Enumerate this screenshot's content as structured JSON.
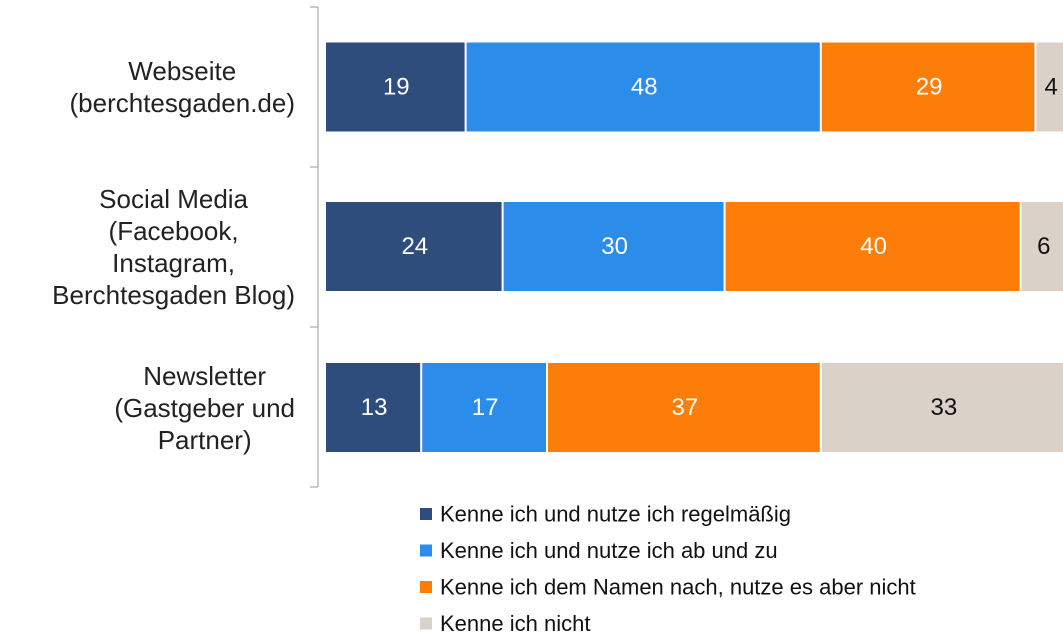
{
  "chart_data": {
    "type": "bar",
    "orientation": "horizontal",
    "stacked": true,
    "categories": [
      "Webseite\n(berchtesgaden.de)",
      "Social Media\n(Facebook,\nInstagram,\nBerchtesgaden Blog)",
      "Newsletter\n(Gastgeber und\nPartner)"
    ],
    "series": [
      {
        "name": "Kenne ich und nutze ich regelmäßig",
        "color": "#2e4d7d",
        "values": [
          19,
          24,
          13
        ]
      },
      {
        "name": "Kenne ich und nutze ich ab und zu",
        "color": "#2b8de9",
        "values": [
          48,
          30,
          17
        ]
      },
      {
        "name": "Kenne ich dem Namen nach, nutze es aber nicht",
        "color": "#fc7d08",
        "values": [
          29,
          40,
          37
        ]
      },
      {
        "name": "Kenne ich nicht",
        "color": "#dad1c8",
        "values": [
          4,
          6,
          33
        ]
      }
    ],
    "xlim": [
      0,
      100
    ],
    "legend": "bottom"
  }
}
